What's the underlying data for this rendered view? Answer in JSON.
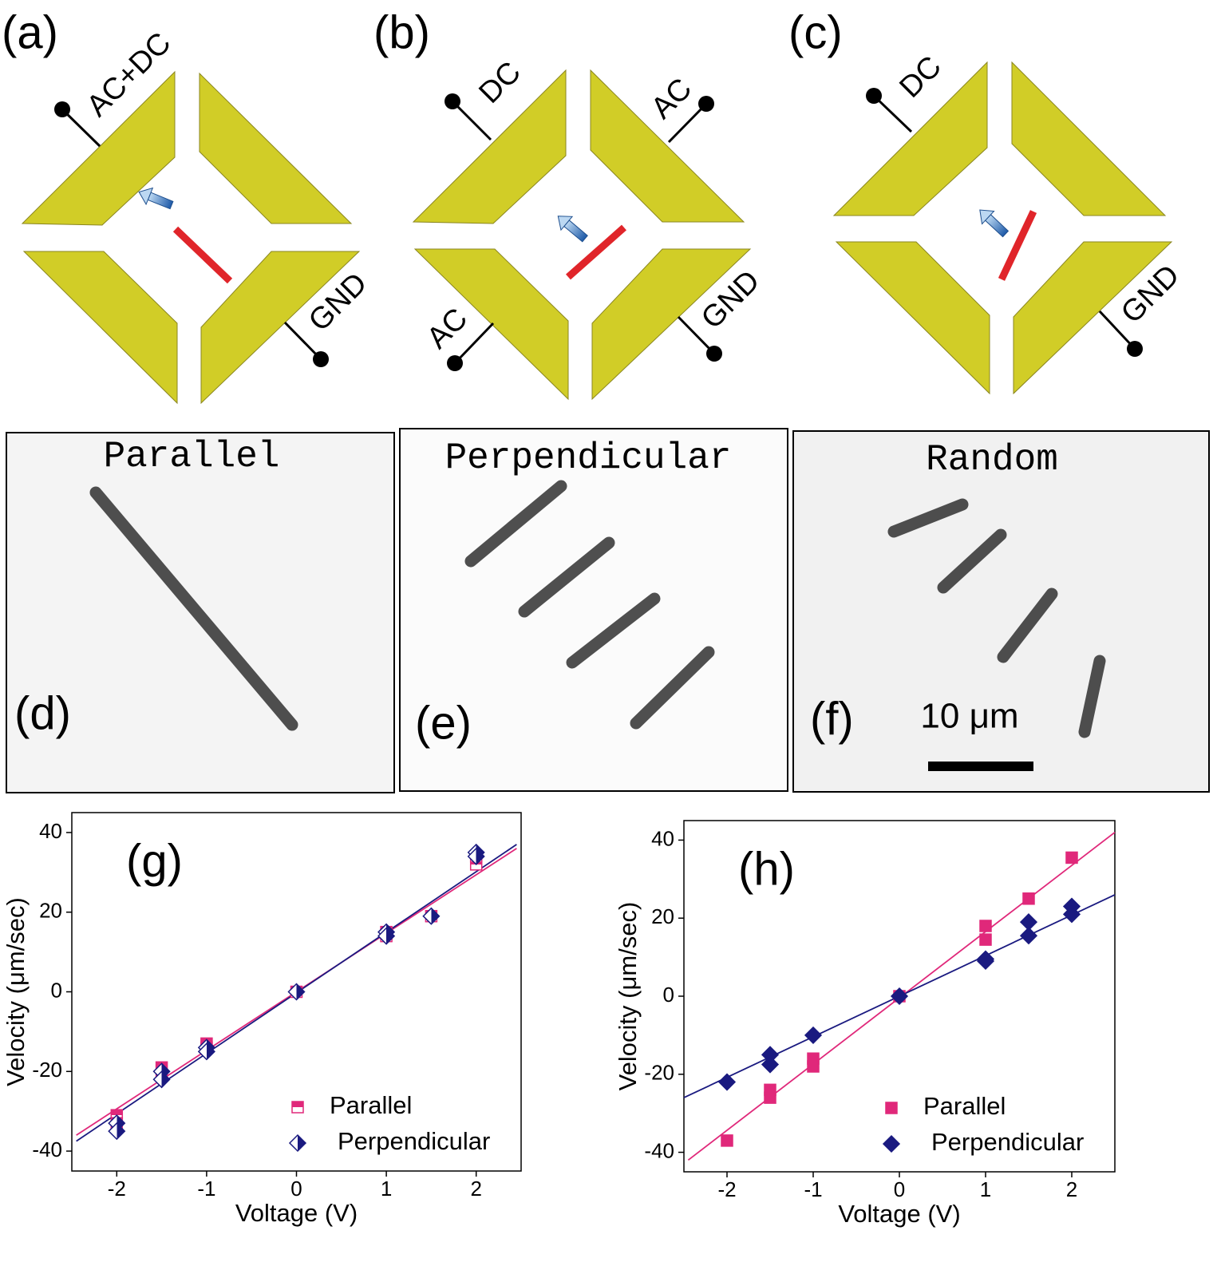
{
  "diagrams": [
    {
      "label": "(a)",
      "terminals": [
        "AC+DC",
        "GND"
      ]
    },
    {
      "label": "(b)",
      "terminals": [
        "DC",
        "AC",
        "AC",
        "GND"
      ]
    },
    {
      "label": "(c)",
      "terminals": [
        "DC",
        "GND"
      ]
    }
  ],
  "micrographs": [
    {
      "title": "Parallel",
      "label": "(d)"
    },
    {
      "title": "Perpendicular",
      "label": "(e)"
    },
    {
      "title": "Random",
      "label": "(f)",
      "scale_bar": "10 μm"
    }
  ],
  "chart_data": [
    {
      "type": "scatter",
      "label": "(g)",
      "x_label": "Voltage (V)",
      "y_label": "Velocity (μm/sec)",
      "xlim": [
        -2.5,
        2.5
      ],
      "xticks": [
        -2,
        -1,
        0,
        1,
        2
      ],
      "ylim": [
        -45,
        45
      ],
      "yticks": [
        -40,
        -20,
        0,
        20,
        40
      ],
      "legend": "lower right",
      "series": [
        {
          "name": "Parallel",
          "color": "#e0287a",
          "marker": "square",
          "fill": "half",
          "x": [
            -2,
            -2,
            -1.5,
            -1.5,
            -1,
            -1,
            0,
            1,
            1,
            1.5,
            2,
            2
          ],
          "values": [
            -31,
            -33,
            -19,
            -21,
            -13,
            -14,
            0,
            14,
            15,
            19,
            32,
            34
          ]
        },
        {
          "name": "Perpendicular",
          "color": "#1a1a80",
          "marker": "diamond",
          "fill": "half",
          "x": [
            -2,
            -2,
            -1.5,
            -1.5,
            -1,
            -1,
            0,
            1,
            1,
            1.5,
            2,
            2
          ],
          "values": [
            -33,
            -35,
            -20,
            -22,
            -14,
            -15,
            0,
            15,
            14,
            19,
            35,
            34
          ]
        }
      ],
      "fit_lines": [
        {
          "color": "#e0287a",
          "x": [
            -2.45,
            2.45
          ],
          "values": [
            -36,
            36
          ]
        },
        {
          "color": "#1a1a80",
          "x": [
            -2.45,
            2.45
          ],
          "values": [
            -37.5,
            37
          ]
        }
      ]
    },
    {
      "type": "scatter",
      "label": "(h)",
      "x_label": "Voltage (V)",
      "y_label": "Velocity (μm/sec)",
      "xlim": [
        -2.5,
        2.5
      ],
      "xticks": [
        -2,
        -1,
        0,
        1,
        2
      ],
      "ylim": [
        -45,
        45
      ],
      "yticks": [
        -40,
        -20,
        0,
        20,
        40
      ],
      "legend": "lower right",
      "series": [
        {
          "name": "Parallel",
          "color": "#e0287a",
          "marker": "square",
          "fill": "full",
          "x": [
            -2,
            -1.5,
            -1.5,
            -1,
            -1,
            0,
            1,
            1,
            1.5,
            2
          ],
          "values": [
            -37,
            -24,
            -26,
            -16,
            -18,
            0,
            18,
            14.5,
            25,
            35.5
          ]
        },
        {
          "name": "Perpendicular",
          "color": "#1a1a80",
          "marker": "diamond",
          "fill": "full",
          "x": [
            -2,
            -1.5,
            -1.5,
            -1,
            0,
            1,
            1,
            1.5,
            1.5,
            2,
            2
          ],
          "values": [
            -22,
            -15,
            -17.5,
            -10,
            0,
            9,
            9.5,
            19,
            15.5,
            23,
            21
          ]
        }
      ],
      "fit_lines": [
        {
          "color": "#e0287a",
          "x": [
            -2.45,
            2.5
          ],
          "values": [
            -42,
            42
          ]
        },
        {
          "color": "#1a1a80",
          "x": [
            -2.5,
            2.5
          ],
          "values": [
            -26,
            26
          ]
        }
      ]
    }
  ]
}
